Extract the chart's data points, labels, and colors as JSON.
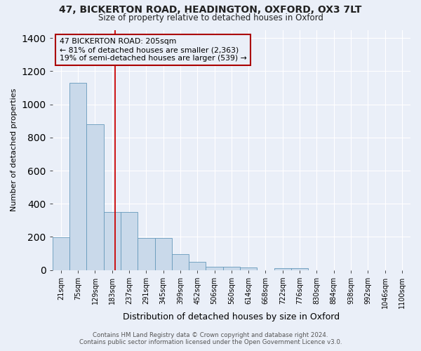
{
  "title_line1": "47, BICKERTON ROAD, HEADINGTON, OXFORD, OX3 7LT",
  "title_line2": "Size of property relative to detached houses in Oxford",
  "xlabel": "Distribution of detached houses by size in Oxford",
  "ylabel": "Number of detached properties",
  "bin_labels": [
    "21sqm",
    "75sqm",
    "129sqm",
    "183sqm",
    "237sqm",
    "291sqm",
    "345sqm",
    "399sqm",
    "452sqm",
    "506sqm",
    "560sqm",
    "614sqm",
    "668sqm",
    "722sqm",
    "776sqm",
    "830sqm",
    "884sqm",
    "938sqm",
    "992sqm",
    "1046sqm",
    "1100sqm"
  ],
  "bar_heights": [
    196,
    1130,
    878,
    352,
    352,
    192,
    192,
    96,
    50,
    20,
    18,
    14,
    0,
    12,
    12,
    0,
    0,
    0,
    0,
    0,
    0
  ],
  "bar_color": "#c9d9ea",
  "bar_edge_color": "#6699bb",
  "red_line_x": 3.18,
  "annotation_title": "47 BICKERTON ROAD: 205sqm",
  "annotation_line2": "← 81% of detached houses are smaller (2,363)",
  "annotation_line3": "19% of semi-detached houses are larger (539) →",
  "ylim": [
    0,
    1450
  ],
  "yticks": [
    0,
    200,
    400,
    600,
    800,
    1000,
    1200,
    1400
  ],
  "bg_color": "#eaeff8",
  "grid_color": "#ffffff",
  "footer_line1": "Contains HM Land Registry data © Crown copyright and database right 2024.",
  "footer_line2": "Contains public sector information licensed under the Open Government Licence v3.0."
}
